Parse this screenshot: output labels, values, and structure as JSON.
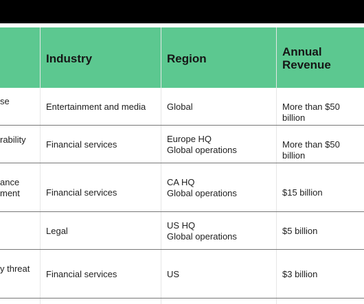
{
  "table": {
    "headers": {
      "industry": "Industry",
      "region": "Region",
      "revenue": "Annual\nRevenue"
    },
    "rows": [
      {
        "first": "se",
        "industry": "Entertainment and media",
        "region": "Global",
        "revenue": "More than $50 billion"
      },
      {
        "first": "rability",
        "industry": "Financial services",
        "region": "Europe HQ\nGlobal operations",
        "revenue": "More than $50 billion"
      },
      {
        "first": "ance\nment",
        "industry": "Financial services",
        "region": "CA HQ\nGlobal operations",
        "revenue": "$15 billion"
      },
      {
        "first": "",
        "industry": "Legal",
        "region": "US HQ\nGlobal operations",
        "revenue": "$5 billion"
      },
      {
        "first": "y threat",
        "industry": "Financial services",
        "region": "US",
        "revenue": "$3 billion"
      }
    ]
  }
}
